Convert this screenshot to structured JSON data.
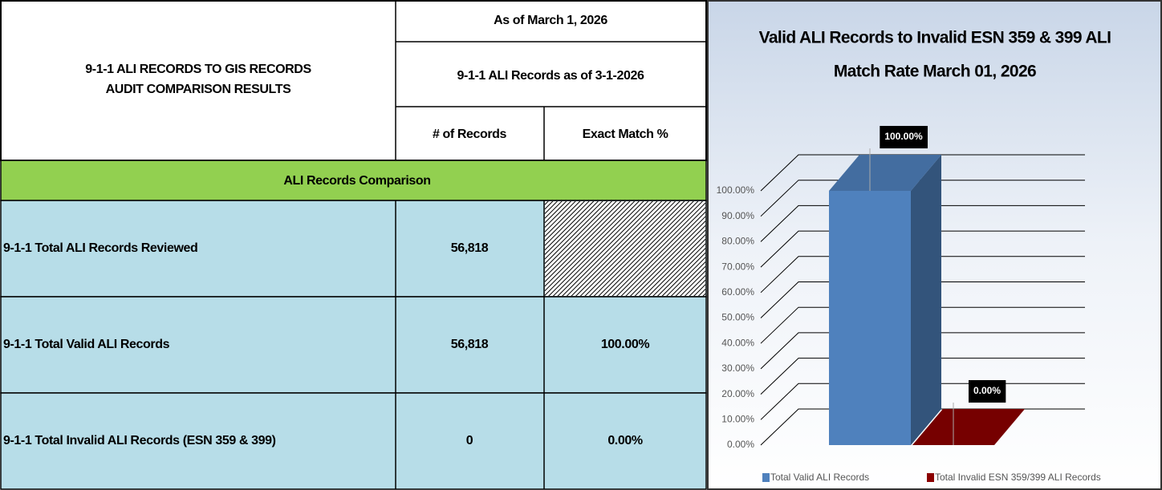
{
  "table": {
    "title": [
      "9-1-1 ALI RECORDS TO GIS RECORDS",
      "AUDIT COMPARISON RESULTS"
    ],
    "as_of": "As of March 1, 2026",
    "subheader": "9-1-1 ALI Records as of 3-1-2026",
    "columns": [
      "# of Records",
      "Exact Match %"
    ],
    "section": "ALI Records Comparison",
    "rows": [
      [
        "9-1-1 Total ALI Records Reviewed",
        "56,818"
      ],
      [
        "9-1-1 Total Valid ALI Records",
        "56,818",
        "100.00%"
      ],
      [
        "9-1-1 Total Invalid ALI Records (ESN 359 & 399)",
        "0",
        "0.00%"
      ]
    ]
  },
  "chart_data": {
    "type": "bar3d",
    "title": [
      "Valid ALI Records to Invalid ESN 359 & 399 ALI",
      "Match Rate March 01, 2026"
    ],
    "categories": [
      "Total Valid ALI Records",
      "Total Invalid ESN 359/399 ALI Records"
    ],
    "values": [
      100,
      0
    ],
    "value_labels": [
      "100.00%",
      "0.00%"
    ],
    "colors": [
      "#4f81bd",
      "#8b0000"
    ],
    "ylim": [
      0,
      100
    ],
    "yticks": [
      {
        "value": 0,
        "label": "0.00%"
      },
      {
        "value": 10,
        "label": "10.00%"
      },
      {
        "value": 20,
        "label": "20.00%"
      },
      {
        "value": 30,
        "label": "30.00%"
      },
      {
        "value": 40,
        "label": "40.00%"
      },
      {
        "value": 50,
        "label": "50.00%"
      },
      {
        "value": 60,
        "label": "60.00%"
      },
      {
        "value": 70,
        "label": "70.00%"
      },
      {
        "value": 80,
        "label": "80.00%"
      },
      {
        "value": 90,
        "label": "90.00%"
      },
      {
        "value": 100,
        "label": "100.00%"
      }
    ],
    "grid": true,
    "legend": "bottom"
  }
}
